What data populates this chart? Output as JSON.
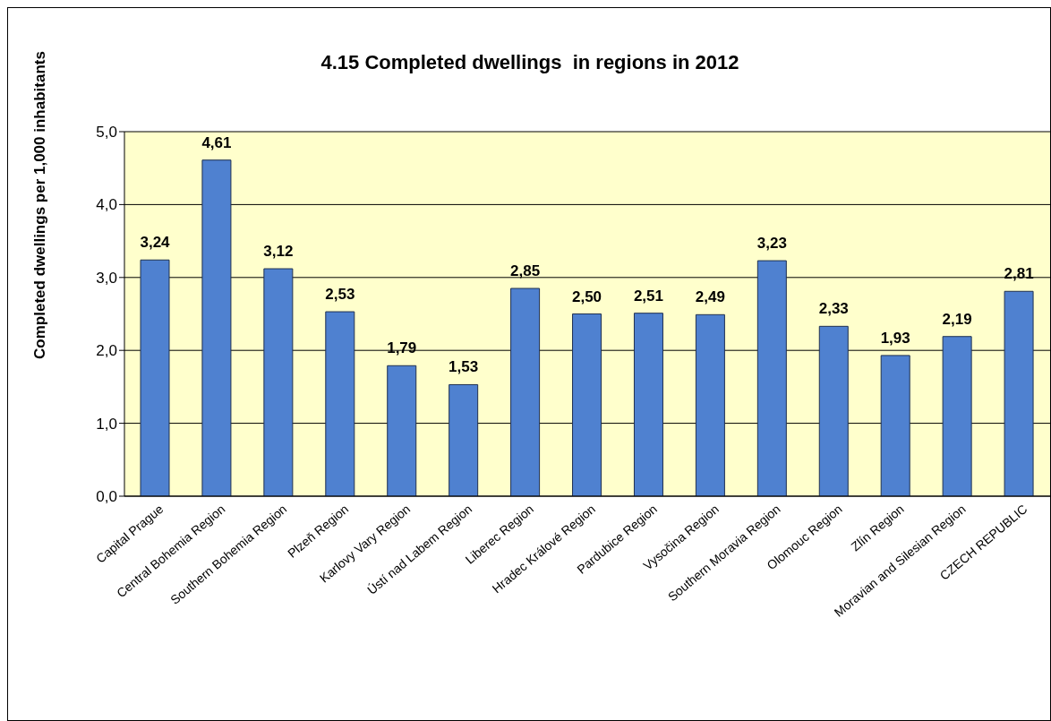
{
  "chart_data": {
    "type": "bar",
    "title": "4.15 Completed dwellings  in regions in 2012",
    "ylabel": "Completed dwellings per 1,000 inhabitants",
    "categories": [
      "Capital Prague",
      "Central Bohemia Region",
      "Southern Bohemia Region",
      "Plzeň Region",
      "Karlovy Vary Region",
      "Ústí nad Labem Region",
      "Liberec Region",
      "Hradec Králové Region",
      "Pardubice Region",
      "Vysočina Region",
      "Southern Moravia Region",
      "Olomouc Region",
      "Zlín Region",
      "Moravian and Silesian Region",
      "CZECH REPUBLIC"
    ],
    "values": [
      3.24,
      4.61,
      3.12,
      2.53,
      1.79,
      1.53,
      2.85,
      2.5,
      2.51,
      2.49,
      3.23,
      2.33,
      1.93,
      2.19,
      2.81
    ],
    "value_labels": [
      "3,24",
      "4,61",
      "3,12",
      "2,53",
      "1,79",
      "1,53",
      "2,85",
      "2,50",
      "2,51",
      "2,49",
      "3,23",
      "2,33",
      "1,93",
      "2,19",
      "2,81"
    ],
    "color": "#4f81d0",
    "ylim": [
      0,
      5
    ],
    "yticks": [
      {
        "value": 0,
        "label": "0,0"
      },
      {
        "value": 1,
        "label": "1,0"
      },
      {
        "value": 2,
        "label": "2,0"
      },
      {
        "value": 3,
        "label": "3,0"
      },
      {
        "value": 4,
        "label": "4,0"
      },
      {
        "value": 5,
        "label": "5,0"
      }
    ],
    "grid": "y",
    "legend": false
  }
}
